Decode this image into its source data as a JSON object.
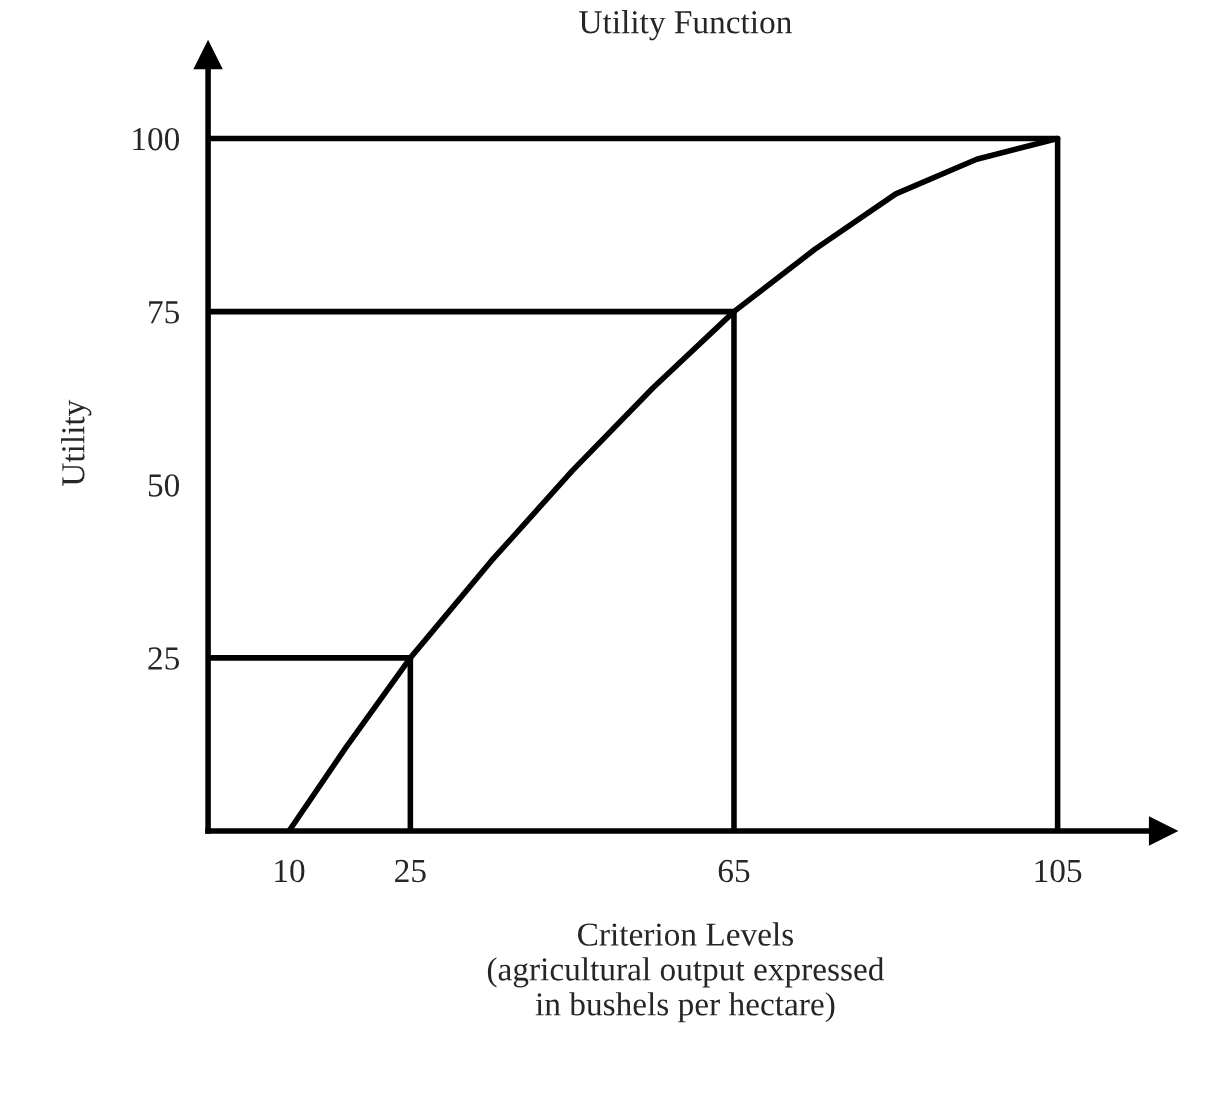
{
  "chart_data": {
    "type": "line",
    "title": "Utility Function",
    "xlabel": "Criterion Levels\n(agricultural output expressed\nin bushels per hectare)",
    "ylabel": "Utility",
    "series": [
      {
        "color": "#000000",
        "x": [
          10,
          17,
          25,
          35,
          45,
          55,
          65,
          75,
          85,
          95,
          105
        ],
        "values": [
          0,
          12,
          25,
          39,
          52,
          64,
          75,
          84,
          92,
          97,
          100
        ]
      },
      {
        "color": "#000000",
        "x": [
          0,
          25,
          25
        ],
        "values": [
          25,
          25,
          0
        ]
      },
      {
        "color": "#000000",
        "x": [
          0,
          65,
          65
        ],
        "values": [
          75,
          75,
          0
        ]
      },
      {
        "color": "#000000",
        "x": [
          0,
          105,
          105
        ],
        "values": [
          100,
          100,
          0
        ]
      }
    ],
    "xlim": [
      0,
      118
    ],
    "ylim": [
      0,
      112
    ],
    "xticks": [
      10,
      25,
      65,
      105
    ],
    "yticks": [
      25,
      50,
      75,
      100
    ],
    "grid": false,
    "legend": false,
    "marker": "none",
    "line_style": "solid"
  }
}
